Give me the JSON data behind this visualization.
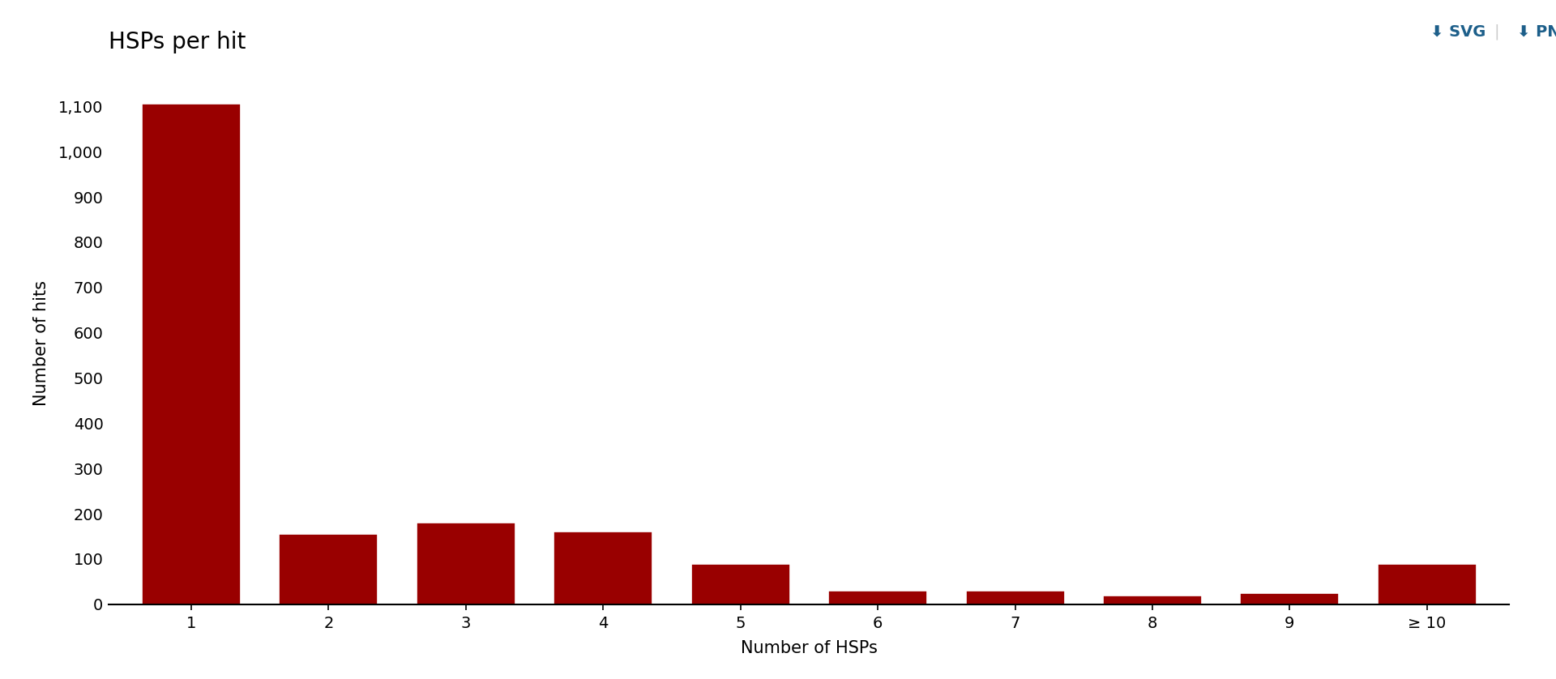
{
  "categories": [
    "1",
    "2",
    "3",
    "4",
    "5",
    "6",
    "7",
    "8",
    "9",
    "≥ 10"
  ],
  "values": [
    1105,
    155,
    180,
    160,
    90,
    30,
    30,
    20,
    25,
    90
  ],
  "bar_color": "#990000",
  "title": "HSPs per hit",
  "xlabel": "Number of HSPs",
  "ylabel": "Number of hits",
  "ylim": [
    0,
    1155
  ],
  "yticks": [
    0,
    100,
    200,
    300,
    400,
    500,
    600,
    700,
    800,
    900,
    1000,
    1100
  ],
  "ytick_labels": [
    "0",
    "100",
    "200",
    "300",
    "400",
    "500",
    "600",
    "700",
    "800",
    "900",
    "1,000",
    "1,100"
  ],
  "title_fontsize": 20,
  "label_fontsize": 15,
  "tick_fontsize": 14,
  "background_color": "#ffffff",
  "bar_edge_color": "white",
  "bar_linewidth": 1.2,
  "bar_width": 0.72
}
